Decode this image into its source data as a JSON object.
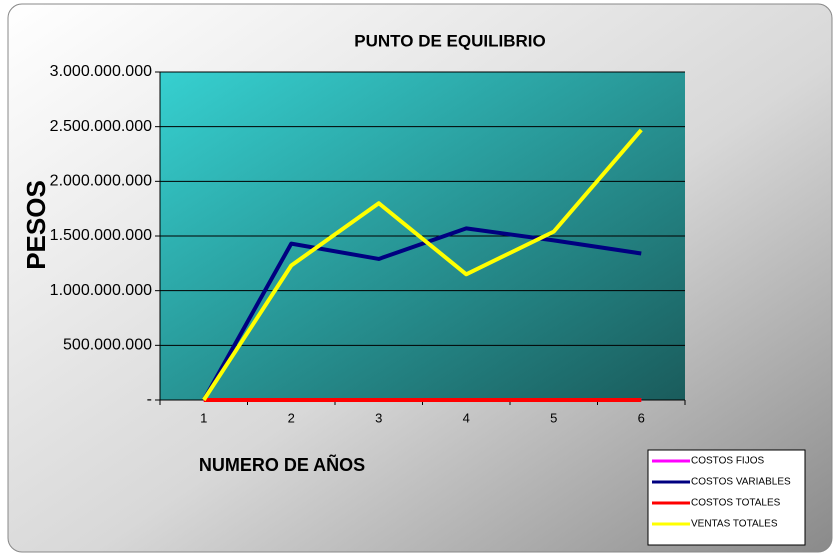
{
  "chart_data": {
    "type": "line",
    "title": "PUNTO DE EQUILIBRIO",
    "y_label": "PESOS",
    "x_label": "NUMERO DE AÑOS",
    "categories": [
      "1",
      "2",
      "3",
      "4",
      "5",
      "6"
    ],
    "series": [
      {
        "name": "COSTOS FIJOS",
        "color": "#ff00ff",
        "values": [
          0,
          0,
          0,
          0,
          0,
          0
        ]
      },
      {
        "name": "COSTOS VARIABLES",
        "color": "#000080",
        "values": [
          0,
          1430000000,
          1290000000,
          1570000000,
          1460000000,
          1340000000
        ]
      },
      {
        "name": "COSTOS TOTALES",
        "color": "#ff0000",
        "values": [
          0,
          0,
          0,
          0,
          0,
          0
        ]
      },
      {
        "name": "VENTAS TOTALES",
        "color": "#ffff00",
        "values": [
          0,
          1230000000,
          1800000000,
          1150000000,
          1540000000,
          2470000000
        ]
      }
    ],
    "ylim": [
      0,
      3000000000
    ],
    "yticks": [
      {
        "value": 0,
        "label": "-"
      },
      {
        "value": 500000000,
        "label": "500.000.000"
      },
      {
        "value": 1000000000,
        "label": "1.000.000.000"
      },
      {
        "value": 1500000000,
        "label": "1.500.000.000"
      },
      {
        "value": 2000000000,
        "label": "2.000.000.000"
      },
      {
        "value": 2500000000,
        "label": "2.500.000.000"
      },
      {
        "value": 3000000000,
        "label": "3.000.000.000"
      }
    ],
    "grid": true,
    "legend": "lower right"
  }
}
